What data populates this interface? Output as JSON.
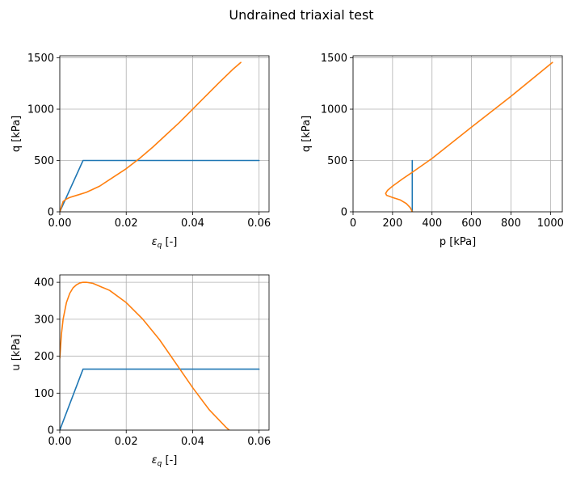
{
  "title": "Undrained triaxial test",
  "colors": {
    "series1": "#1f77b4",
    "series2": "#ff7f0e",
    "grid": "#b0b0b0"
  },
  "chart_data": [
    {
      "type": "line",
      "xlabel": "ε_q [-]",
      "ylabel": "q [kPa]",
      "xlim": [
        0,
        0.063
      ],
      "ylim": [
        0,
        1520
      ],
      "xticks": [
        0,
        0.02,
        0.04,
        0.06
      ],
      "xtick_labels": [
        "0.00",
        "0.02",
        "0.04",
        "0.06"
      ],
      "yticks": [
        0,
        500,
        1000,
        1500
      ],
      "ytick_labels": [
        "0",
        "500",
        "1000",
        "1500"
      ],
      "grid": true,
      "series": [
        {
          "x": [
            0,
            0.007,
            0.06
          ],
          "y": [
            0,
            500,
            500
          ]
        },
        {
          "x": [
            0,
            0.001,
            0.002,
            0.003,
            0.005,
            0.008,
            0.012,
            0.016,
            0.02,
            0.024,
            0.028,
            0.032,
            0.036,
            0.04,
            0.044,
            0.048,
            0.052,
            0.0545
          ],
          "y": [
            0,
            100,
            125,
            140,
            160,
            190,
            250,
            335,
            420,
            520,
            630,
            750,
            870,
            1000,
            1130,
            1260,
            1385,
            1455
          ]
        }
      ]
    },
    {
      "type": "line",
      "xlabel": "p [kPa]",
      "ylabel": "q [kPa]",
      "xlim": [
        0,
        1060
      ],
      "ylim": [
        0,
        1520
      ],
      "xticks": [
        0,
        200,
        400,
        600,
        800,
        1000
      ],
      "xtick_labels": [
        "0",
        "200",
        "400",
        "600",
        "800",
        "1000"
      ],
      "yticks": [
        0,
        500,
        1000,
        1500
      ],
      "ytick_labels": [
        "0",
        "500",
        "1000",
        "1500"
      ],
      "grid": true,
      "series": [
        {
          "x": [
            300,
            300
          ],
          "y": [
            0,
            500
          ]
        },
        {
          "x": [
            300,
            290,
            270,
            240,
            200,
            170,
            165,
            175,
            200,
            250,
            300,
            400,
            600,
            800,
            1010
          ],
          "y": [
            0,
            40,
            80,
            115,
            140,
            160,
            180,
            210,
            250,
            320,
            385,
            520,
            825,
            1125,
            1455
          ]
        }
      ]
    },
    {
      "type": "line",
      "xlabel": "ε_q [-]",
      "ylabel": "u [kPa]",
      "xlim": [
        0,
        0.063
      ],
      "ylim": [
        0,
        420
      ],
      "xticks": [
        0,
        0.02,
        0.04,
        0.06
      ],
      "xtick_labels": [
        "0.00",
        "0.02",
        "0.04",
        "0.06"
      ],
      "yticks": [
        0,
        100,
        200,
        300,
        400
      ],
      "ytick_labels": [
        "0",
        "100",
        "200",
        "300",
        "400"
      ],
      "grid": true,
      "series": [
        {
          "x": [
            0,
            0.007,
            0.06
          ],
          "y": [
            0,
            165,
            165
          ]
        },
        {
          "x": [
            0,
            0.0005,
            0.001,
            0.002,
            0.003,
            0.004,
            0.005,
            0.006,
            0.007,
            0.008,
            0.01,
            0.015,
            0.02,
            0.025,
            0.03,
            0.035,
            0.04,
            0.045,
            0.05,
            0.051
          ],
          "y": [
            195,
            260,
            300,
            345,
            370,
            385,
            393,
            398,
            400,
            400,
            397,
            378,
            345,
            300,
            245,
            180,
            115,
            55,
            8,
            0
          ]
        }
      ]
    }
  ]
}
